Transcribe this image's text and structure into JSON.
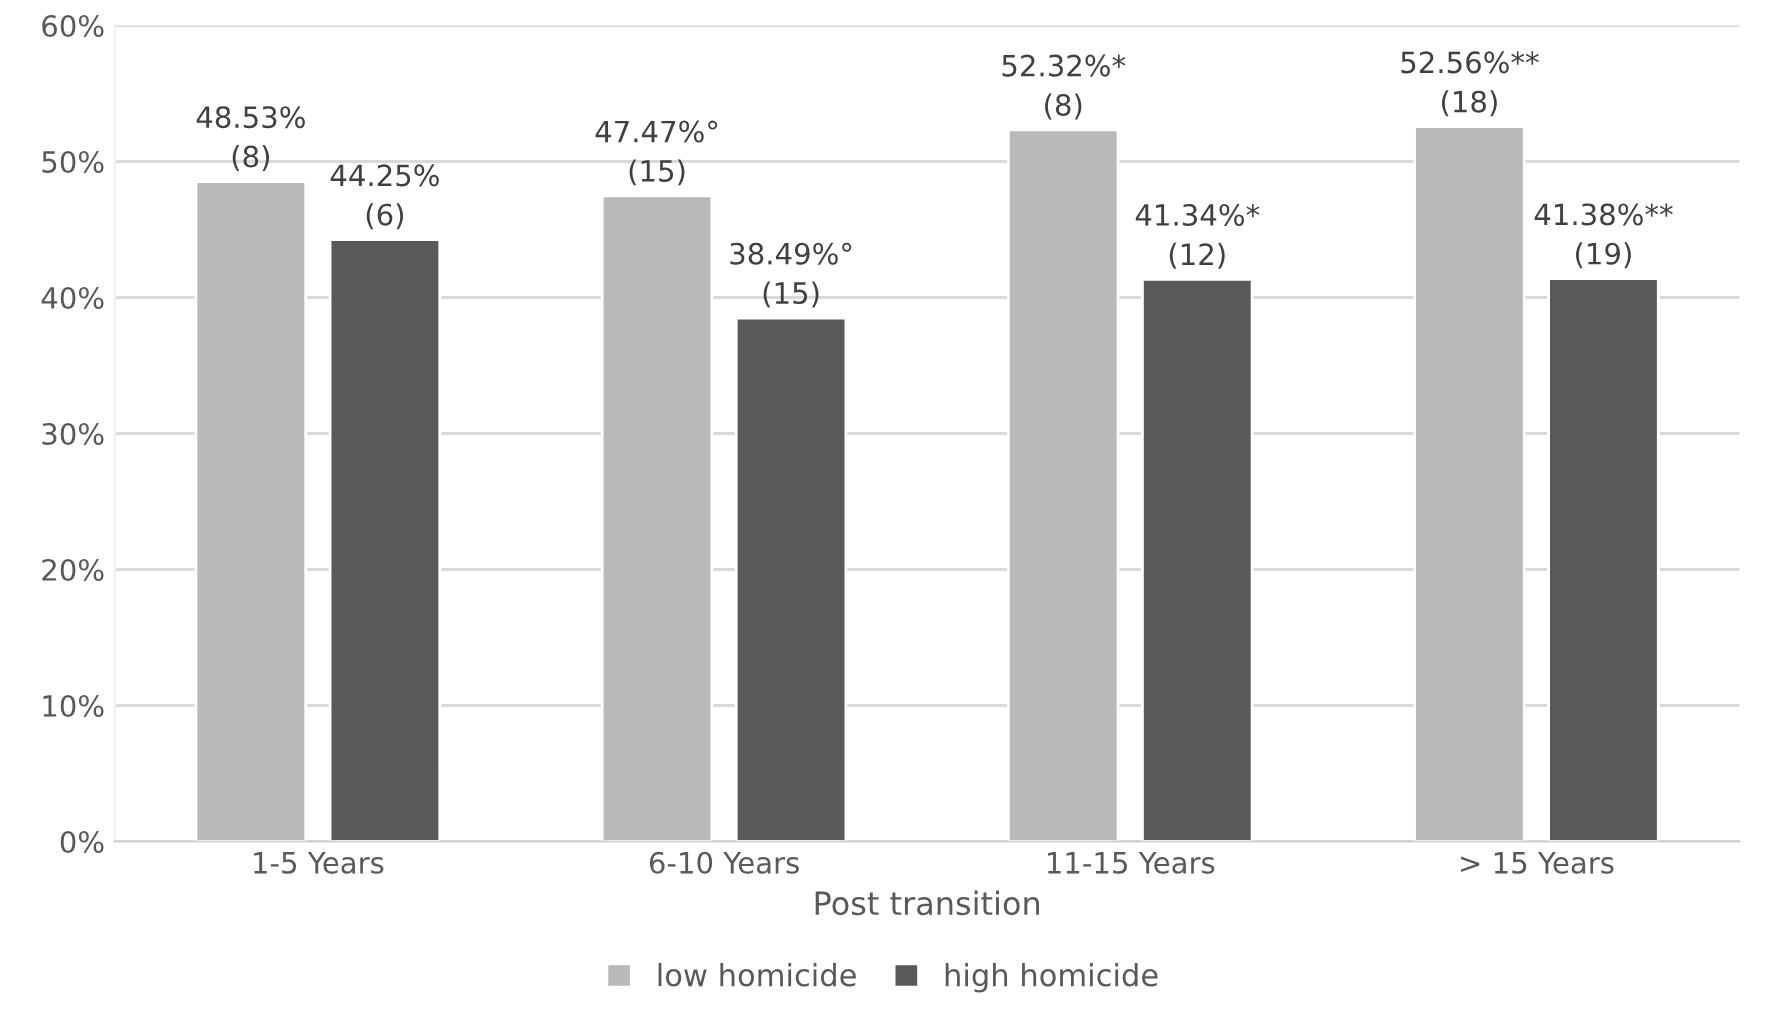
{
  "chart_data": {
    "type": "bar",
    "xlabel": "Post transition",
    "categories": [
      "1-5 Years",
      "6-10 Years",
      "11-15 Years",
      "> 15 Years"
    ],
    "series": [
      {
        "name": "low homicide",
        "color": "#b9b9b9",
        "values": [
          48.53,
          47.47,
          52.32,
          52.56
        ],
        "value_labels": [
          "48.53%\n(8)",
          "47.47%°\n(15)",
          "52.32%*\n(8)",
          "52.56%**\n(18)"
        ]
      },
      {
        "name": "high homicide",
        "color": "#595959",
        "values": [
          44.25,
          38.49,
          41.34,
          41.38
        ],
        "value_labels": [
          "44.25%\n(6)",
          "38.49%°\n(15)",
          "41.34%*\n(12)",
          "41.38%**\n(19)"
        ]
      }
    ],
    "ylim": [
      0,
      60
    ],
    "yticks": [
      {
        "value": 0,
        "label": "0%"
      },
      {
        "value": 10,
        "label": "10%"
      },
      {
        "value": 20,
        "label": "20%"
      },
      {
        "value": 30,
        "label": "30%"
      },
      {
        "value": 40,
        "label": "40%"
      },
      {
        "value": 50,
        "label": "50%"
      },
      {
        "value": 60,
        "label": "60%"
      }
    ],
    "grid": "y",
    "legend": "bottom"
  }
}
